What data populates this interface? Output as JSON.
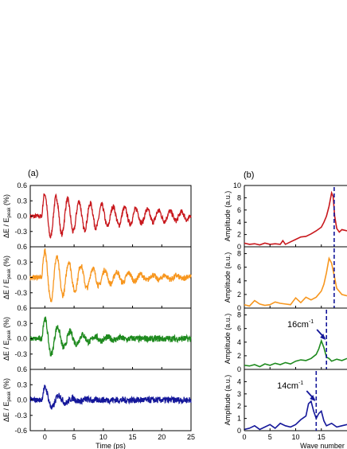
{
  "chart_data": [
    {
      "panel_label": "(a)",
      "type": "line",
      "xlabel": "Time (ps)",
      "ylabel": "ΔE / E_peak (%)",
      "xlim": [
        -2.5,
        25
      ],
      "xticks": [
        0,
        5,
        10,
        15,
        20,
        25
      ],
      "grid": false,
      "subplots": [
        {
          "color": "#c8171c",
          "ylim": [
            -0.6,
            0.6
          ],
          "yticks": [
            "0.6",
            "0.3",
            "0.0",
            "-0.3"
          ],
          "envelope": {
            "t0": -0.5,
            "peak": 0.45,
            "decay_ps": 14,
            "period_ps": 1.95,
            "noise": 0.06
          }
        },
        {
          "color": "#f7961e",
          "ylim": [
            -0.6,
            0.6
          ],
          "yticks": [
            "0.6",
            "0.3",
            "0.0",
            "-0.3"
          ],
          "envelope": {
            "t0": -0.5,
            "peak": 0.55,
            "decay_ps": 8,
            "period_ps": 2.05,
            "noise": 0.06
          }
        },
        {
          "color": "#1e8a1e",
          "ylim": [
            -0.6,
            0.6
          ],
          "yticks": [
            "0.6",
            "0.3",
            "0.0",
            "-0.3"
          ],
          "envelope": {
            "t0": -0.5,
            "peak": 0.45,
            "decay_ps": 4,
            "period_ps": 2.15,
            "noise": 0.07
          }
        },
        {
          "color": "#14179a",
          "ylim": [
            -0.6,
            0.6
          ],
          "yticks": [
            "0.6",
            "0.3",
            "0.0",
            "-0.3",
            "-0.6"
          ],
          "envelope": {
            "t0": -0.5,
            "peak": 0.3,
            "decay_ps": 2.5,
            "period_ps": 2.35,
            "noise": 0.07
          }
        }
      ]
    },
    {
      "panel_label": "(b)",
      "type": "line",
      "xlabel": "Wave number",
      "ylabel": "Amplitude (a.u.)",
      "xlim": [
        0,
        20
      ],
      "xticks": [
        0,
        5,
        10,
        15
      ],
      "grid": false,
      "subplots": [
        {
          "color": "#c8171c",
          "ylim": [
            0,
            10
          ],
          "yticks": [
            "10",
            "8",
            "6",
            "4",
            "2",
            "0"
          ],
          "x": [
            0,
            1,
            2,
            3,
            4,
            5,
            6,
            7,
            7.5,
            8,
            9,
            10,
            11,
            12,
            13,
            14,
            15,
            15.5,
            16,
            16.5,
            17,
            17.3,
            17.6,
            18,
            18.5,
            19,
            20
          ],
          "y": [
            0.6,
            0.4,
            0.5,
            0.3,
            0.6,
            0.4,
            0.5,
            0.4,
            1.0,
            0.4,
            0.8,
            1.2,
            1.6,
            1.7,
            2.1,
            2.6,
            3.2,
            4.0,
            5.0,
            6.6,
            8.8,
            8.2,
            5.0,
            3.0,
            2.4,
            2.8,
            2.6
          ],
          "marker_x": 17.5
        },
        {
          "color": "#f7961e",
          "ylim": [
            0,
            9
          ],
          "yticks": [
            "8",
            "6",
            "4",
            "2",
            "0"
          ],
          "x": [
            0,
            1,
            2,
            3,
            4,
            5,
            6,
            7,
            8,
            9,
            10,
            11,
            12,
            13,
            14,
            15,
            15.5,
            16,
            16.5,
            17,
            17.5,
            18,
            19,
            20
          ],
          "y": [
            0.5,
            0.3,
            1.1,
            0.6,
            0.4,
            0.5,
            0.9,
            0.7,
            0.6,
            0.5,
            1.5,
            0.8,
            1.6,
            1.2,
            1.6,
            2.5,
            3.5,
            5.2,
            7.3,
            6.6,
            4.8,
            2.9,
            2.0,
            1.8
          ],
          "marker_x": 17.5
        },
        {
          "color": "#1e8a1e",
          "ylim": [
            0,
            9
          ],
          "yticks": [
            "8",
            "6",
            "4",
            "2",
            "0"
          ],
          "x": [
            0,
            1,
            2,
            3,
            4,
            5,
            6,
            7,
            8,
            9,
            10,
            11,
            12,
            13,
            14,
            14.5,
            15,
            15.5,
            16,
            16.5,
            17,
            18,
            19,
            20
          ],
          "y": [
            0.6,
            0.5,
            0.7,
            0.4,
            0.8,
            0.6,
            0.9,
            0.7,
            1.0,
            0.8,
            1.2,
            1.4,
            1.3,
            1.6,
            2.2,
            3.0,
            4.2,
            3.2,
            1.8,
            1.6,
            1.2,
            1.5,
            1.3,
            1.6
          ],
          "marker_x": 16,
          "annotation": "16cm",
          "annotation_sup": "-1"
        },
        {
          "color": "#14179a",
          "ylim": [
            0,
            5
          ],
          "yticks": [
            "4",
            "3",
            "2",
            "1",
            "0"
          ],
          "x": [
            0,
            1,
            2,
            3,
            4,
            5,
            6,
            7,
            8,
            9,
            10,
            11,
            12,
            12.5,
            13,
            13.5,
            14,
            14.5,
            15,
            15.5,
            16,
            17,
            18,
            19,
            20
          ],
          "y": [
            0.1,
            0.2,
            0.4,
            0.1,
            0.3,
            0.5,
            0.2,
            0.6,
            0.4,
            0.3,
            0.5,
            0.9,
            1.2,
            2.2,
            2.4,
            1.6,
            1.0,
            1.4,
            1.6,
            0.8,
            0.4,
            0.6,
            0.3,
            0.4,
            0.5
          ],
          "marker_x": 14,
          "annotation": "14cm",
          "annotation_sup": "-1"
        }
      ]
    }
  ]
}
